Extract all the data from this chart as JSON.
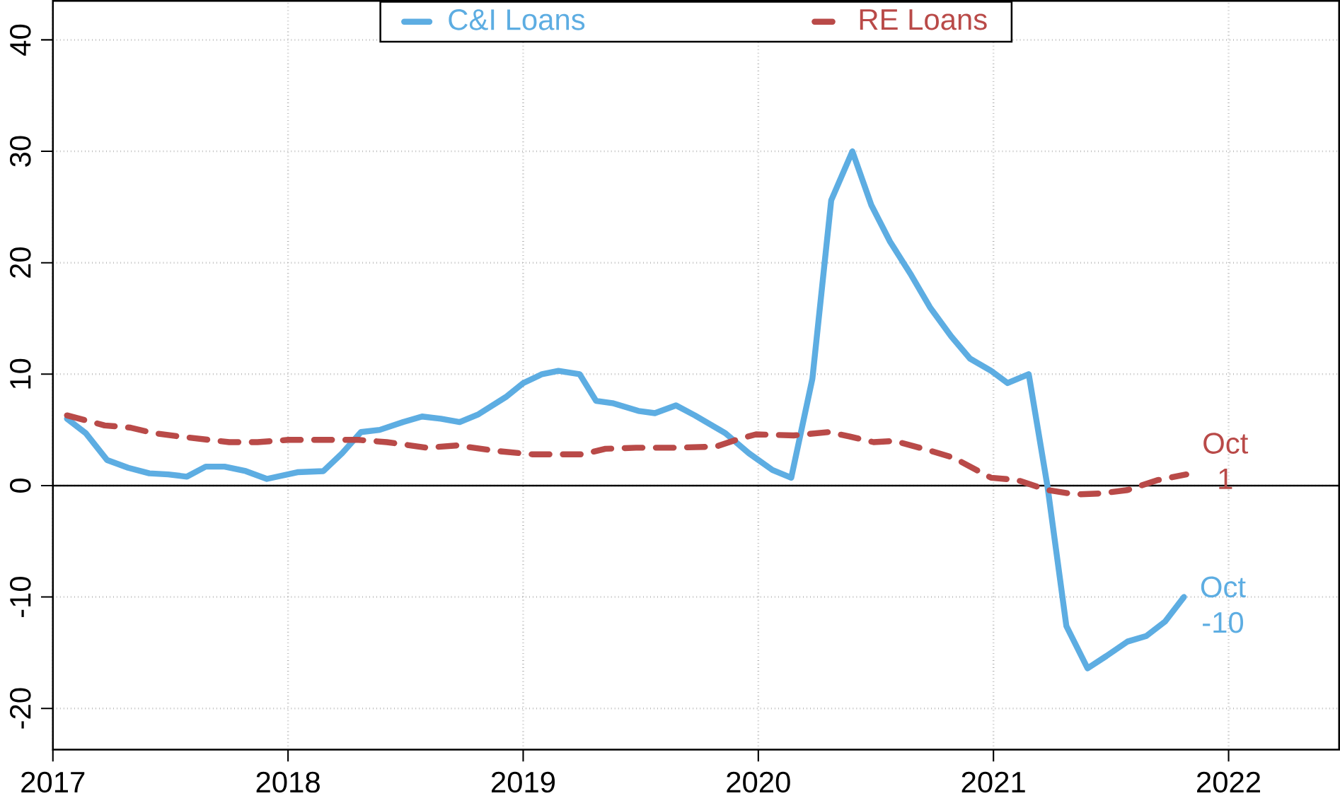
{
  "chart_data": {
    "type": "line",
    "xlim": [
      2017,
      2022.47
    ],
    "ylim": [
      -23.7,
      43.5
    ],
    "xticks": [
      2017,
      2018,
      2019,
      2020,
      2021,
      2022
    ],
    "yticks": [
      -20,
      -10,
      0,
      10,
      20,
      30,
      40
    ],
    "grid": true,
    "legend": "top",
    "marker": "none",
    "series": [
      {
        "name": "C&I Loans",
        "color": "#5dade2",
        "line_style": "solid",
        "x": [
          2017.06,
          2017.14,
          2017.23,
          2017.32,
          2017.41,
          2017.49,
          2017.57,
          2017.65,
          2017.73,
          2017.82,
          2017.91,
          2018.04,
          2018.15,
          2018.23,
          2018.31,
          2018.39,
          2018.49,
          2018.57,
          2018.65,
          2018.73,
          2018.81,
          2018.93,
          2019.0,
          2019.08,
          2019.15,
          2019.24,
          2019.31,
          2019.38,
          2019.49,
          2019.56,
          2019.65,
          2019.73,
          2019.86,
          2019.96,
          2020.06,
          2020.14,
          2020.23,
          2020.31,
          2020.4,
          2020.48,
          2020.56,
          2020.65,
          2020.73,
          2020.82,
          2020.9,
          2020.99,
          2021.06,
          2021.15,
          2021.23,
          2021.31,
          2021.4,
          2021.48,
          2021.57,
          2021.65,
          2021.73,
          2021.81
        ],
        "values": [
          6.0,
          4.7,
          2.3,
          1.6,
          1.1,
          1.0,
          0.8,
          1.7,
          1.7,
          1.3,
          0.6,
          1.2,
          1.3,
          2.9,
          4.8,
          5.0,
          5.7,
          6.2,
          6.0,
          5.7,
          6.4,
          8.0,
          9.2,
          10.0,
          10.3,
          10.0,
          7.6,
          7.4,
          6.7,
          6.5,
          7.2,
          6.3,
          4.7,
          2.9,
          1.4,
          0.7,
          9.6,
          25.6,
          30.0,
          25.2,
          21.9,
          18.9,
          16.0,
          13.4,
          11.4,
          10.3,
          9.2,
          10.0,
          -0.1,
          -12.6,
          -16.4,
          -15.3,
          -14.0,
          -13.5,
          -12.2,
          -10.0
        ]
      },
      {
        "name": "RE Loans",
        "color": "#b94a48",
        "line_style": "dashed",
        "x": [
          2017.06,
          2017.22,
          2017.33,
          2017.43,
          2017.54,
          2017.75,
          2017.87,
          2018.0,
          2018.17,
          2018.3,
          2018.42,
          2018.59,
          2018.72,
          2018.89,
          2019.04,
          2019.25,
          2019.35,
          2019.48,
          2019.65,
          2019.82,
          2019.92,
          2019.99,
          2020.15,
          2020.3,
          2020.39,
          2020.49,
          2020.58,
          2020.72,
          2020.83,
          2020.99,
          2021.1,
          2021.23,
          2021.35,
          2021.46,
          2021.57,
          2021.7,
          2021.82
        ],
        "values": [
          6.3,
          5.4,
          5.2,
          4.7,
          4.4,
          3.9,
          3.9,
          4.1,
          4.1,
          4.1,
          3.9,
          3.4,
          3.6,
          3.1,
          2.8,
          2.8,
          3.3,
          3.4,
          3.4,
          3.5,
          4.2,
          4.6,
          4.5,
          4.8,
          4.4,
          3.9,
          4.0,
          3.2,
          2.5,
          0.7,
          0.5,
          -0.4,
          -0.8,
          -0.7,
          -0.4,
          0.5,
          1
        ]
      }
    ],
    "ref_lines": [
      {
        "axis": "y",
        "value": 0,
        "color": "#000000",
        "line_style": "solid"
      }
    ],
    "annotations": [
      {
        "text": "Oct -10",
        "x": 2021.81,
        "y": -10.0
      },
      {
        "text": "Oct 1",
        "x": 2021.82,
        "y": 1
      }
    ]
  }
}
